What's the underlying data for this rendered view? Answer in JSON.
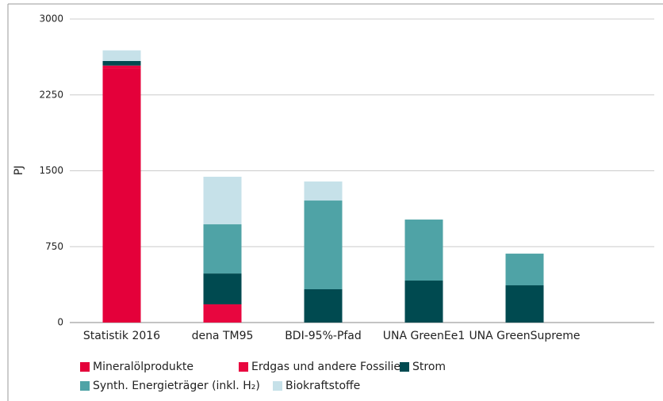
{
  "chart_data": {
    "type": "stacked_bar",
    "y_label": "PJ",
    "categories": [
      "Statistik 2016",
      "dena TM95",
      "BDI-95%-Pfad",
      "UNA GreenEe1",
      "UNA GreenSupreme"
    ],
    "series": [
      {
        "name": "Mineralölprodukte",
        "color": "#e4003a",
        "values": [
          2510,
          0,
          0,
          0,
          0
        ]
      },
      {
        "name": "Erdgas und andere Fossilien",
        "color": "#e8063f",
        "values": [
          30,
          180,
          0,
          0,
          0
        ]
      },
      {
        "name": "Strom",
        "color": "#004a50",
        "values": [
          45,
          305,
          329,
          415,
          368
        ]
      },
      {
        "name": "Synth. Energieträger (inkl. H₂)",
        "color": "#4fa3a6",
        "values": [
          0,
          486,
          877,
          603,
          313
        ]
      },
      {
        "name": "Biokraftstoffe",
        "color": "#c6e1e9",
        "values": [
          105,
          470,
          188,
          0,
          0
        ]
      }
    ],
    "ylim": [
      0,
      3000
    ],
    "yticks": [
      0,
      750,
      1500,
      2250,
      3000
    ],
    "grid": true
  }
}
